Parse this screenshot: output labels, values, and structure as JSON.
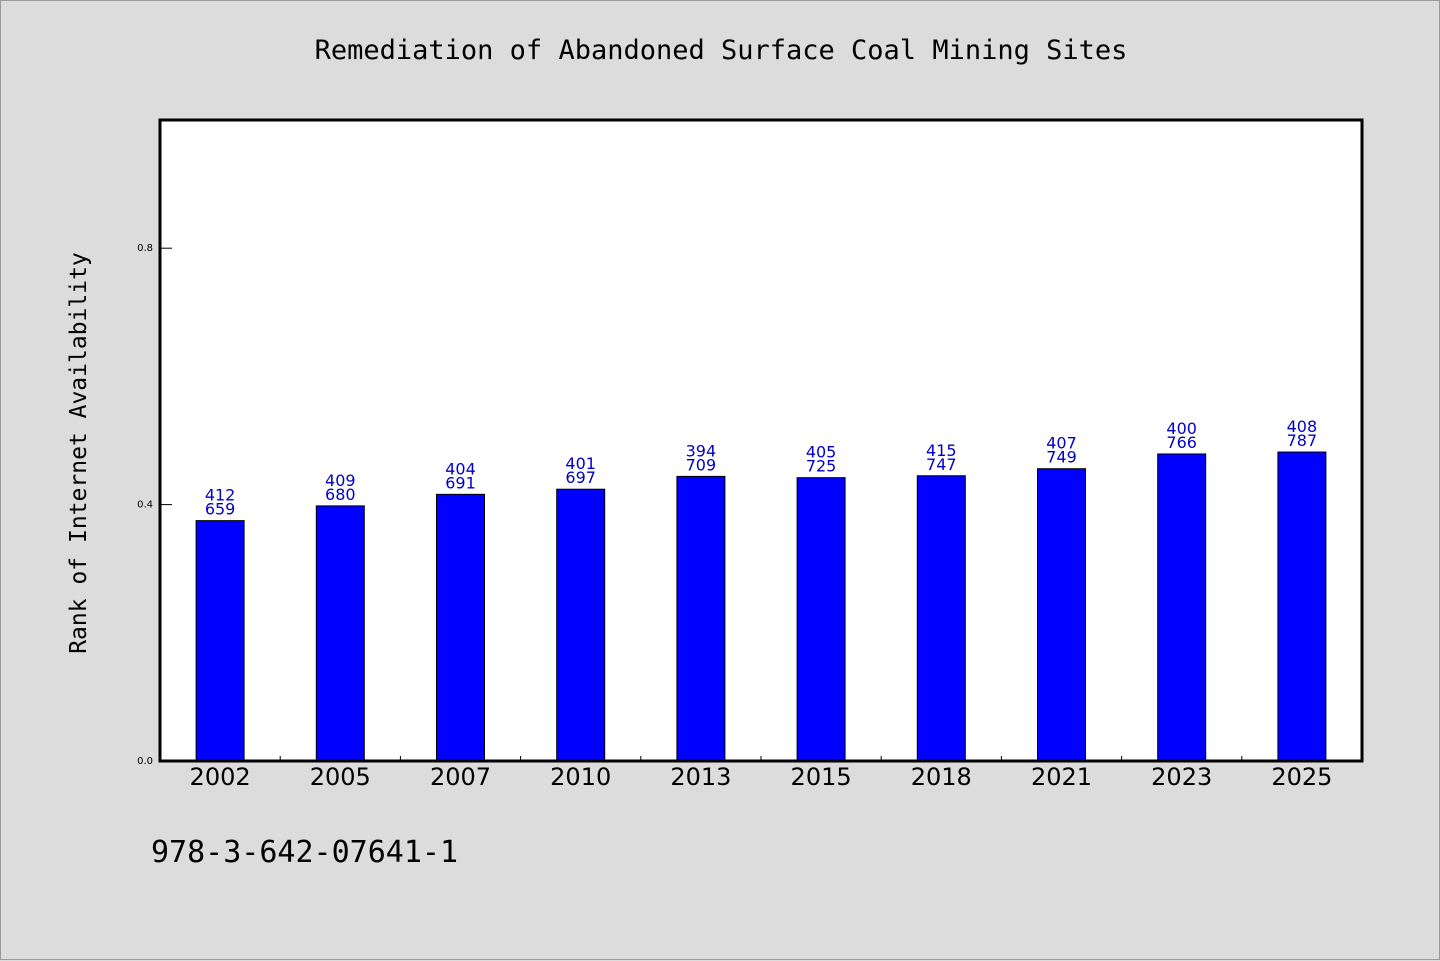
{
  "chart_data": {
    "type": "bar",
    "title": "Remediation of Abandoned Surface Coal Mining Sites",
    "xlabel": "",
    "ylabel": "Rank of Internet Availability",
    "ylim": [
      0,
      1.0
    ],
    "yticks": [
      0.0,
      0.4,
      0.8
    ],
    "ytick_labels": [
      "0.0",
      "0.4",
      "0.8"
    ],
    "categories": [
      "2002",
      "2005",
      "2007",
      "2010",
      "2013",
      "2015",
      "2018",
      "2021",
      "2023",
      "2025"
    ],
    "values": [
      0.375,
      0.398,
      0.416,
      0.424,
      0.444,
      0.442,
      0.445,
      0.456,
      0.479,
      0.482
    ],
    "data_labels": [
      [
        "412",
        "659"
      ],
      [
        "409",
        "680"
      ],
      [
        "404",
        "691"
      ],
      [
        "401",
        "697"
      ],
      [
        "394",
        "709"
      ],
      [
        "405",
        "725"
      ],
      [
        "415",
        "747"
      ],
      [
        "407",
        "749"
      ],
      [
        "400",
        "766"
      ],
      [
        "408",
        "787"
      ]
    ],
    "bar_color": "#0000ff",
    "label_color": "#0000cc",
    "grid": false,
    "legend": "none"
  },
  "footer": {
    "identifier": "978-3-642-07641-1"
  }
}
